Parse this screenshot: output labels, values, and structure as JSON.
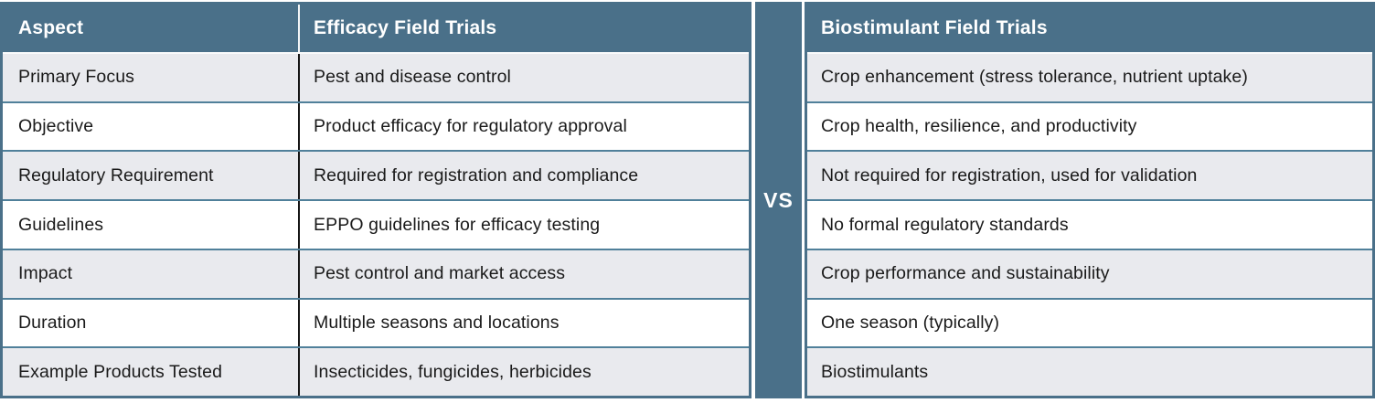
{
  "comparison": {
    "divider_label": "VS",
    "colors": {
      "header_bg": "#4a7089",
      "row_alt_bg": "#e9eaee",
      "row_bg": "#ffffff",
      "header_text": "#ffffff",
      "body_text": "#1a1a1a",
      "column_divider": "#161616"
    },
    "left": {
      "header_aspect": "Aspect",
      "header_title": "Efficacy Field Trials",
      "rows": [
        {
          "aspect": "Primary Focus",
          "value": "Pest and disease control"
        },
        {
          "aspect": "Objective",
          "value": "Product efficacy for regulatory approval"
        },
        {
          "aspect": "Regulatory Requirement",
          "value": "Required for registration and compliance"
        },
        {
          "aspect": "Guidelines",
          "value": "EPPO guidelines for efficacy testing"
        },
        {
          "aspect": "Impact",
          "value": "Pest control and market access"
        },
        {
          "aspect": "Duration",
          "value": "Multiple seasons and locations"
        },
        {
          "aspect": "Example Products Tested",
          "value": "Insecticides, fungicides, herbicides"
        }
      ]
    },
    "right": {
      "header_title": "Biostimulant Field Trials",
      "rows": [
        {
          "value": "Crop enhancement (stress tolerance, nutrient uptake)"
        },
        {
          "value": "Crop health, resilience, and productivity"
        },
        {
          "value": "Not required for registration, used for validation"
        },
        {
          "value": "No formal regulatory standards"
        },
        {
          "value": "Crop performance and sustainability"
        },
        {
          "value": "One season (typically)"
        },
        {
          "value": "Biostimulants"
        }
      ]
    }
  }
}
